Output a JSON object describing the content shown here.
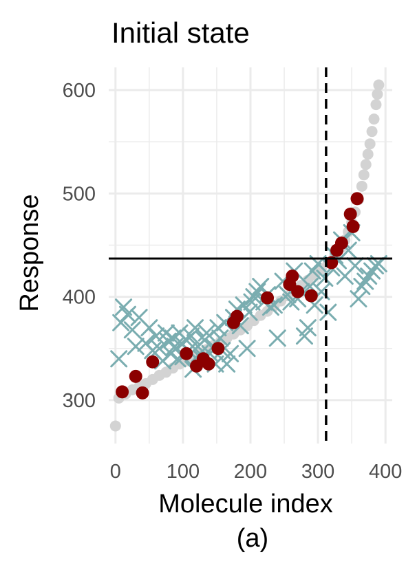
{
  "chart_data": {
    "type": "scatter",
    "title": "Initial state",
    "xlabel": "Molecule index",
    "ylabel": "Response",
    "caption": "(a)",
    "xlim": [
      -10,
      410
    ],
    "ylim": [
      258,
      622
    ],
    "x_ticks": [
      0,
      100,
      200,
      300,
      400
    ],
    "x_tick_labels": [
      "0",
      "100",
      "200",
      "300",
      "400"
    ],
    "y_ticks": [
      300,
      400,
      500,
      600
    ],
    "y_tick_labels": [
      "300",
      "400",
      "500",
      "600"
    ],
    "grid": true,
    "reference_lines": {
      "horizontal_y": 437,
      "vertical_x": 312
    },
    "colors": {
      "background_points": "#d3d3d3",
      "selected_points": "#8b0000",
      "candidate_points": "#7aadb0",
      "grid": "#ebebeb",
      "lines": "#000000"
    },
    "series": [
      {
        "marker": "circle",
        "role": "background",
        "x": [
          0,
          5,
          15,
          25,
          35,
          45,
          55,
          65,
          75,
          85,
          95,
          105,
          115,
          125,
          135,
          145,
          155,
          165,
          175,
          185,
          195,
          205,
          215,
          225,
          235,
          245,
          255,
          265,
          275,
          285,
          295,
          305,
          315,
          325,
          335,
          340,
          345,
          350,
          355,
          360,
          365,
          368,
          371,
          374,
          377,
          380,
          383,
          386,
          388,
          390
        ],
        "y": [
          275,
          302,
          306,
          310,
          313,
          316,
          320,
          324,
          327,
          331,
          335,
          338,
          342,
          345,
          349,
          353,
          356,
          360,
          364,
          368,
          372,
          377,
          382,
          386,
          391,
          396,
          401,
          406,
          411,
          416,
          421,
          427,
          433,
          440,
          448,
          455,
          463,
          472,
          482,
          494,
          507,
          518,
          528,
          538,
          548,
          560,
          572,
          586,
          596,
          605
        ]
      },
      {
        "marker": "circle",
        "role": "selected",
        "x": [
          10,
          30,
          40,
          55,
          105,
          120,
          130,
          138,
          152,
          175,
          180,
          225,
          258,
          262,
          270,
          290,
          320,
          328,
          335,
          348,
          352,
          358
        ],
        "y": [
          308,
          323,
          307,
          337,
          345,
          333,
          340,
          335,
          350,
          375,
          381,
          399,
          412,
          420,
          405,
          401,
          433,
          445,
          452,
          480,
          468,
          495
        ]
      },
      {
        "marker": "x",
        "role": "candidate",
        "x": [
          5,
          8,
          12,
          18,
          25,
          30,
          35,
          45,
          50,
          55,
          60,
          65,
          70,
          75,
          78,
          82,
          85,
          88,
          92,
          95,
          98,
          100,
          105,
          108,
          112,
          115,
          118,
          122,
          125,
          128,
          132,
          135,
          140,
          145,
          148,
          152,
          155,
          158,
          162,
          165,
          170,
          175,
          180,
          185,
          190,
          195,
          198,
          202,
          205,
          210,
          215,
          220,
          225,
          230,
          235,
          240,
          248,
          255,
          260,
          265,
          270,
          275,
          280,
          285,
          288,
          292,
          295,
          300,
          305,
          310,
          315,
          320,
          325,
          330,
          335,
          340,
          345,
          350,
          355,
          360,
          365,
          370,
          375,
          380,
          385,
          390
        ],
        "y": [
          340,
          375,
          390,
          383,
          368,
          352,
          380,
          355,
          370,
          348,
          362,
          350,
          338,
          365,
          357,
          345,
          360,
          352,
          340,
          365,
          355,
          342,
          358,
          348,
          362,
          330,
          370,
          352,
          345,
          340,
          358,
          365,
          345,
          352,
          335,
          370,
          360,
          348,
          375,
          335,
          345,
          380,
          388,
          372,
          392,
          350,
          385,
          395,
          400,
          405,
          410,
          395,
          402,
          390,
          392,
          360,
          415,
          402,
          395,
          425,
          398,
          405,
          362,
          370,
          410,
          425,
          392,
          432,
          405,
          418,
          385,
          428,
          440,
          435,
          455,
          420,
          445,
          462,
          430,
          398,
          410,
          415,
          420,
          425,
          430,
          432
        ]
      }
    ]
  }
}
